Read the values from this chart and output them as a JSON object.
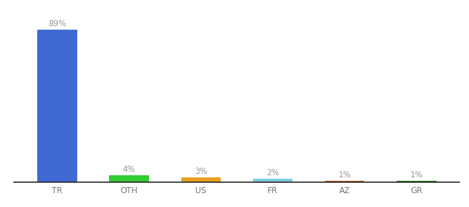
{
  "categories": [
    "TR",
    "OTH",
    "US",
    "FR",
    "AZ",
    "GR"
  ],
  "values": [
    89,
    4,
    3,
    2,
    1,
    1
  ],
  "labels": [
    "89%",
    "4%",
    "3%",
    "2%",
    "1%",
    "1%"
  ],
  "bar_colors": [
    "#4169d4",
    "#33cc33",
    "#e8a020",
    "#7ecede",
    "#c06030",
    "#228b22"
  ],
  "background_color": "#ffffff",
  "ylim": [
    0,
    98
  ],
  "label_fontsize": 8.5,
  "tick_fontsize": 8.5,
  "bar_width": 0.55
}
